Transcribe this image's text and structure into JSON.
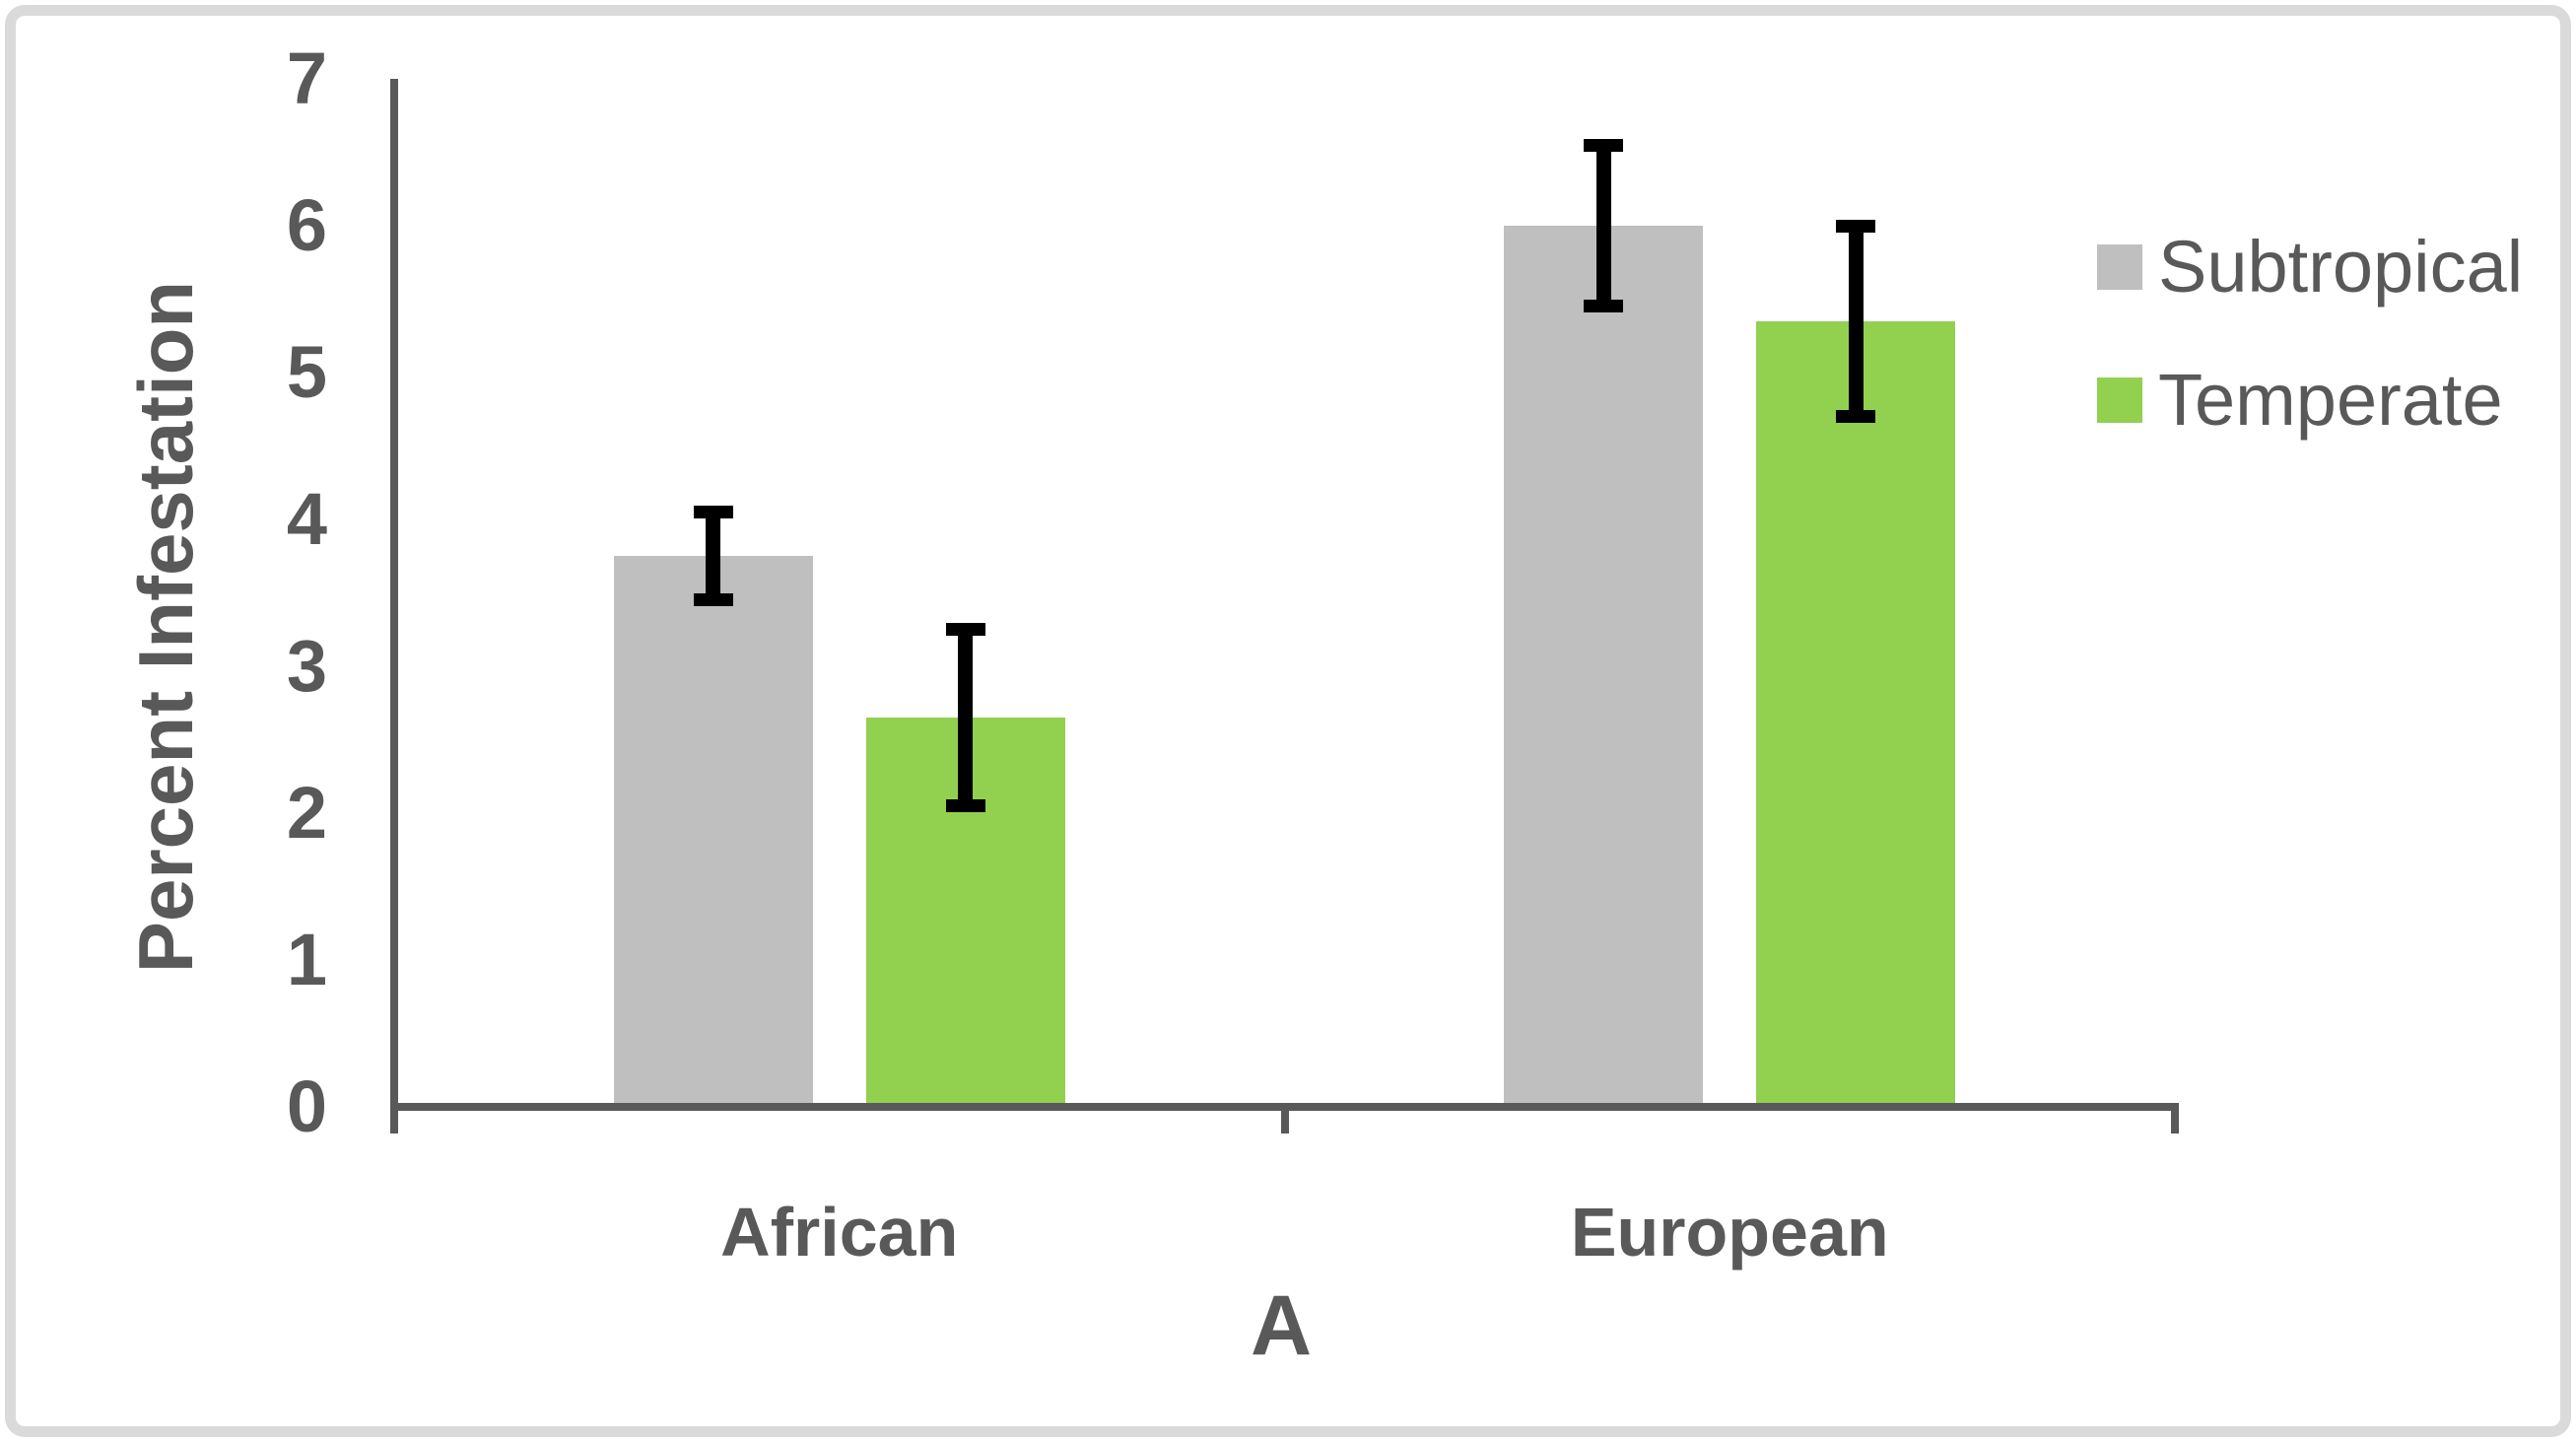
{
  "figure": {
    "border_color": "#dadada",
    "background": "#ffffff"
  },
  "chart_data": {
    "type": "bar",
    "title": "",
    "xlabel": "A",
    "ylabel": "Percent Infestation",
    "categories": [
      "African",
      "European"
    ],
    "series": [
      {
        "name": "Subtropical",
        "color": "#bfbfbf",
        "values": [
          3.75,
          6.0
        ],
        "errors": [
          0.3,
          0.55
        ]
      },
      {
        "name": "Temperate",
        "color": "#92d050",
        "values": [
          2.65,
          5.35
        ],
        "errors": [
          0.6,
          0.65
        ]
      }
    ],
    "ylim": [
      0,
      7
    ],
    "yticks": [
      0,
      1,
      2,
      3,
      4,
      5,
      6,
      7
    ],
    "grid": false,
    "legend_position": "right",
    "error_bars": true,
    "error_bar_color": "#000000",
    "axis_color": "#595959",
    "text_color": "#595959"
  }
}
